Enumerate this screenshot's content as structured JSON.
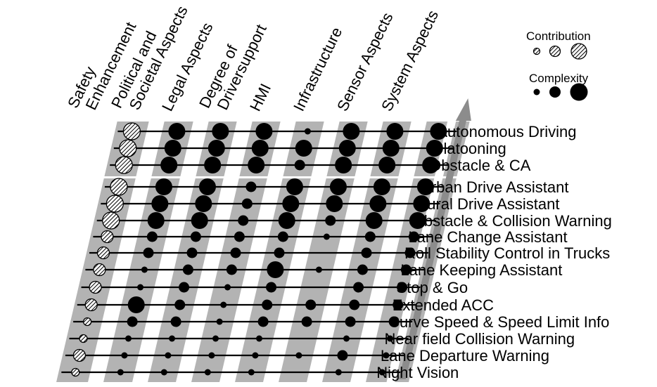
{
  "columns": [
    "Safety\nEnhancement",
    "Political and\nSocietal Aspects",
    "Legal Aspects",
    "Degree of\nDriversupport",
    "HMI",
    "Infrastructure",
    "Sensor Aspects",
    "System Aspects"
  ],
  "legend": {
    "contribution_label": "Contribution",
    "complexity_label": "Complexity",
    "levels": [
      "low",
      "medium",
      "high"
    ]
  },
  "groups": [
    {
      "rows": [
        {
          "label": "Autonomous Driving",
          "safety": 3,
          "complexity": [
            3,
            3,
            3,
            1,
            3,
            3,
            3
          ]
        },
        {
          "label": "Platooning",
          "safety": 3,
          "complexity": [
            3,
            3,
            3,
            3,
            3,
            3,
            3
          ]
        },
        {
          "label": "Obstacle & CA",
          "safety": 3,
          "complexity": [
            3,
            3,
            3,
            2,
            3,
            3,
            3
          ]
        }
      ]
    },
    {
      "rows": [
        {
          "label": "Urban Drive Assistant",
          "safety": 3,
          "complexity": [
            3,
            3,
            2,
            3,
            3,
            3,
            3
          ]
        },
        {
          "label": "Rural Drive Assistant",
          "safety": 3,
          "complexity": [
            3,
            3,
            2,
            3,
            3,
            3,
            3
          ]
        },
        {
          "label": "Obstacle & Collision Warning",
          "safety": 3,
          "complexity": [
            3,
            3,
            2,
            3,
            2,
            3,
            3
          ]
        },
        {
          "label": "Lane Change Assistant",
          "safety": 2,
          "complexity": [
            2,
            2,
            2,
            2,
            1,
            2,
            2
          ]
        },
        {
          "label": "Roll Stability Control in Trucks",
          "safety": 2,
          "complexity": [
            2,
            2,
            2,
            2,
            0,
            2,
            2
          ]
        },
        {
          "label": "Lane Keeping Assistant",
          "safety": 2,
          "complexity": [
            1,
            2,
            2,
            3,
            1,
            2,
            2
          ]
        },
        {
          "label": "Stop & Go",
          "safety": 2,
          "complexity": [
            1,
            2,
            1,
            2,
            0,
            2,
            2
          ]
        },
        {
          "label": "Extended ACC",
          "safety": 2,
          "complexity": [
            3,
            2,
            1,
            2,
            2,
            2,
            2
          ]
        },
        {
          "label": "Curve Speed & Speed Limit Info",
          "safety": 1,
          "complexity": [
            2,
            2,
            1,
            2,
            2,
            2,
            2
          ]
        },
        {
          "label": "Near field Collision Warning",
          "safety": 1,
          "complexity": [
            1,
            1,
            1,
            1,
            0,
            1,
            1
          ]
        },
        {
          "label": "Lane Departure Warning",
          "safety": 2,
          "complexity": [
            1,
            1,
            1,
            1,
            1,
            2,
            1
          ]
        },
        {
          "label": "Night Vision",
          "safety": 1,
          "complexity": [
            1,
            1,
            1,
            1,
            0,
            1,
            1
          ]
        }
      ]
    }
  ]
}
